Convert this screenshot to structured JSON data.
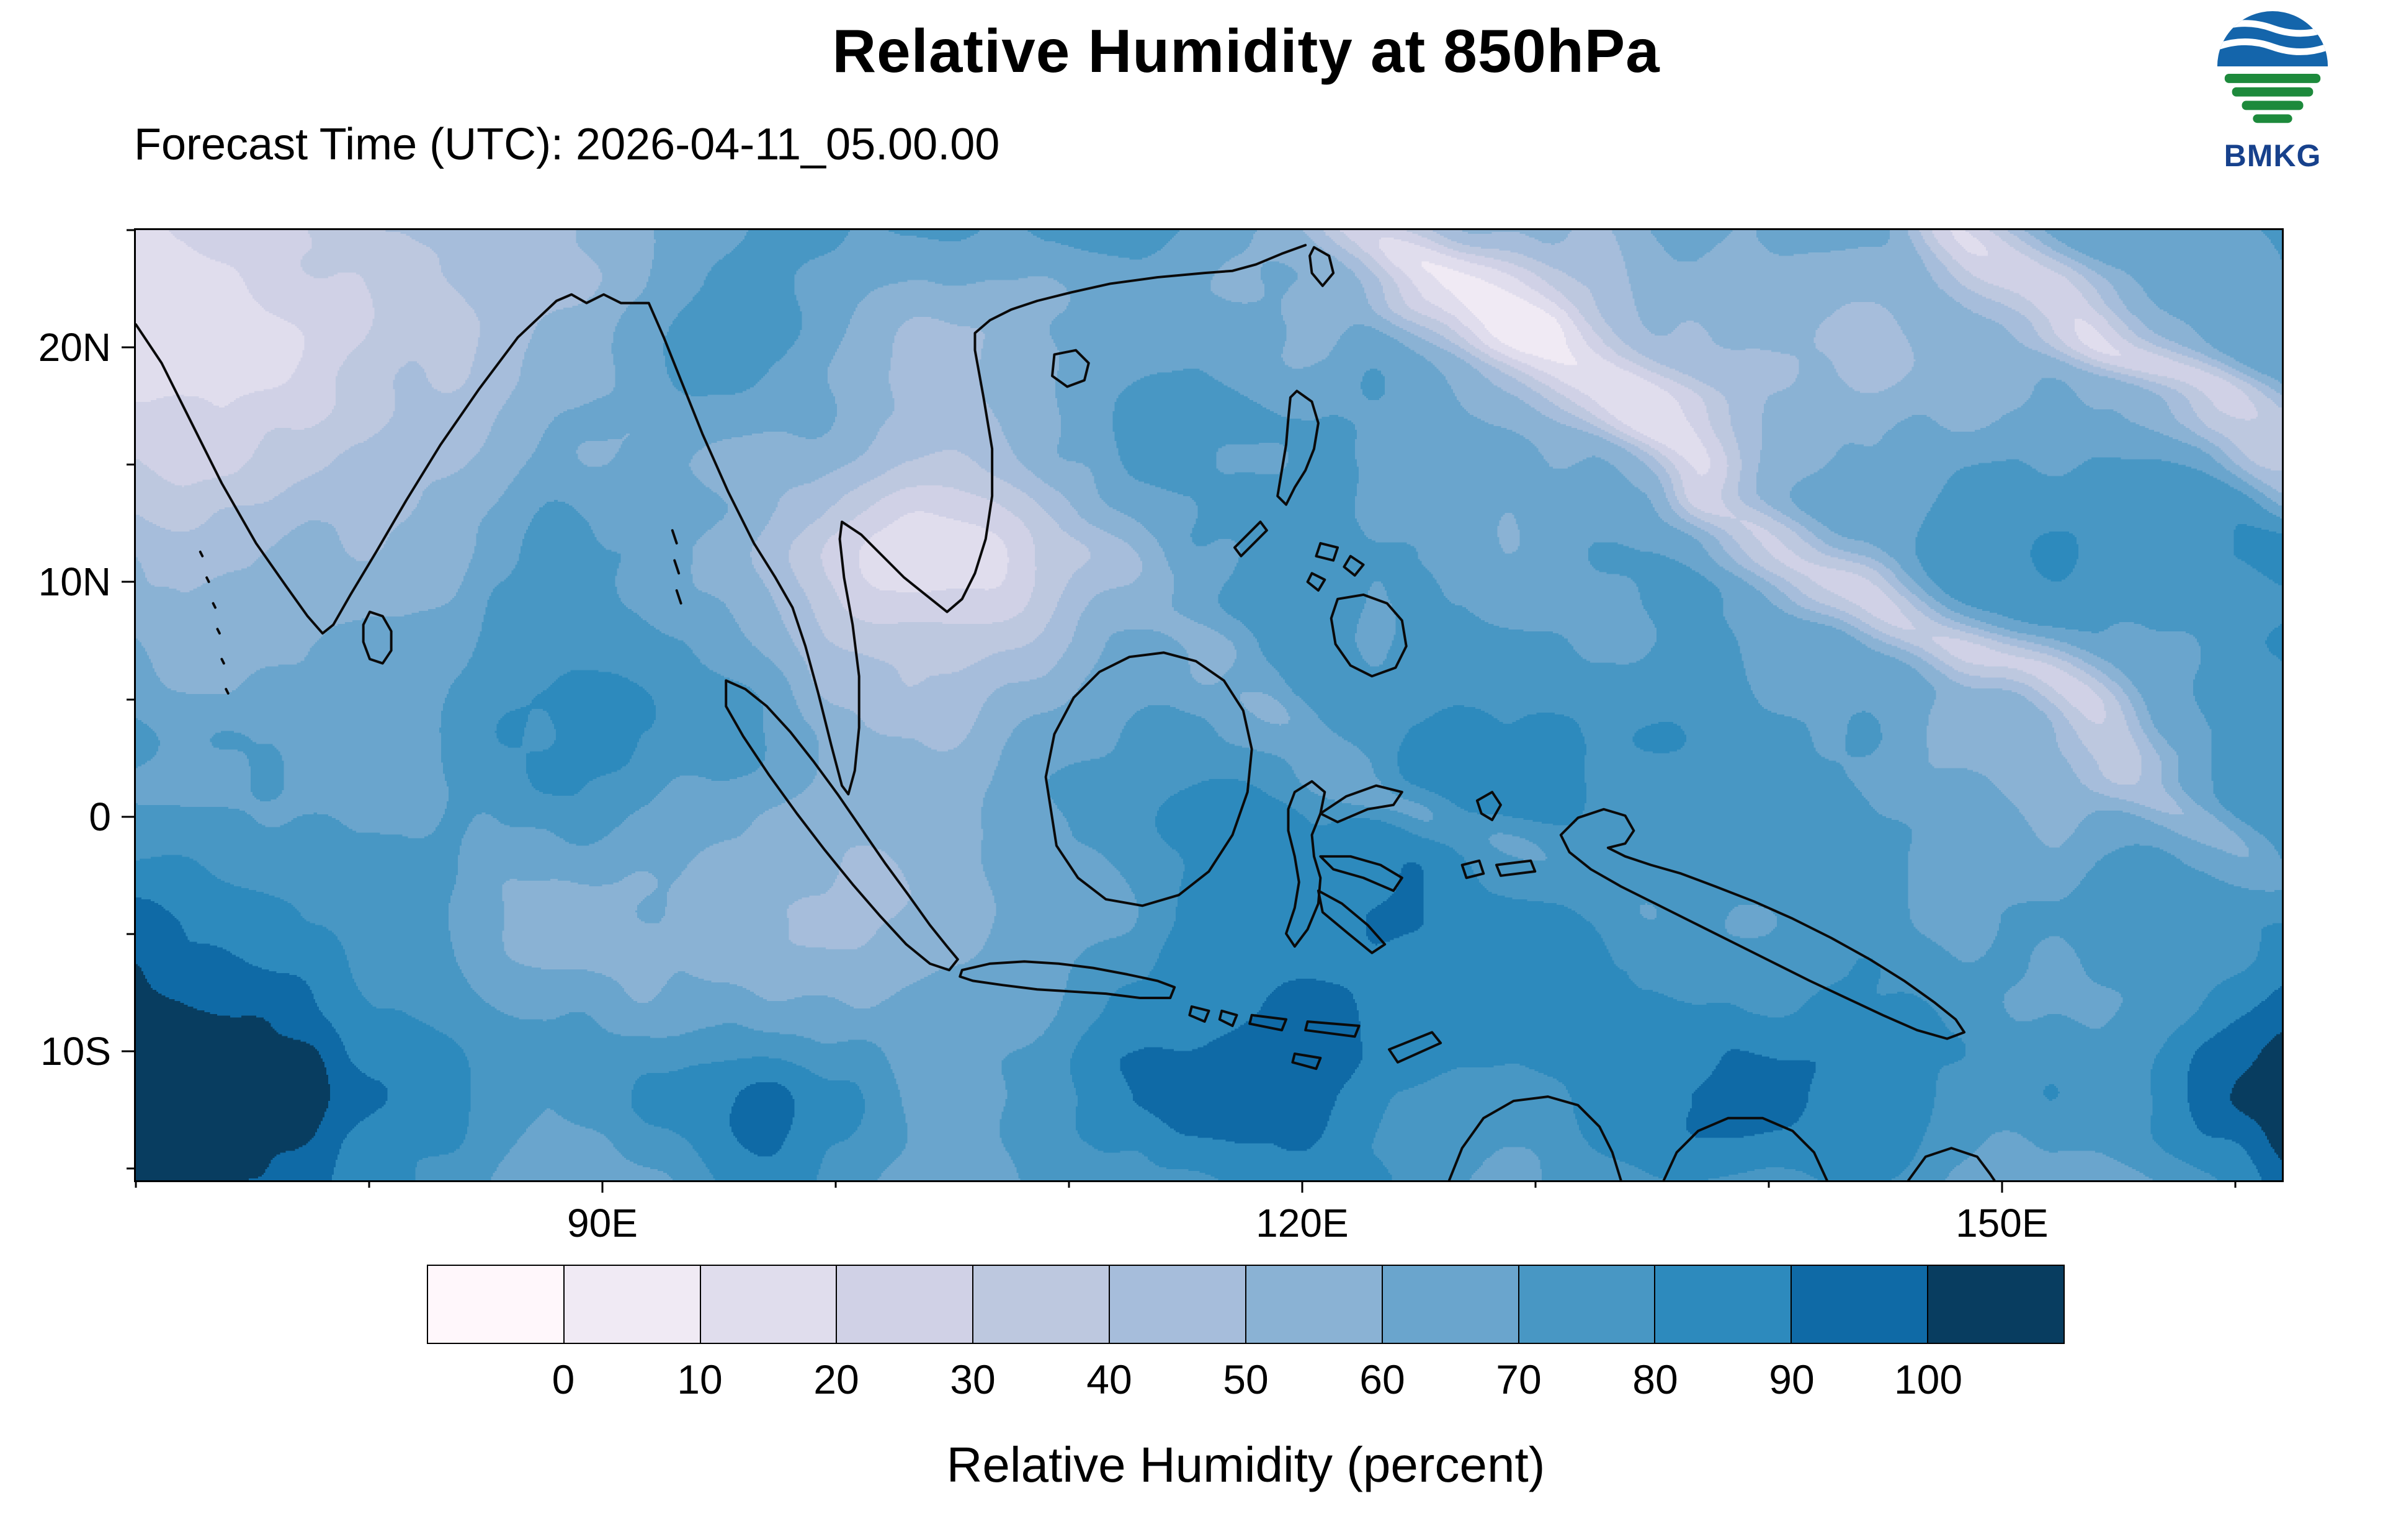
{
  "header": {
    "title": "Relative Humidity at 850hPa",
    "subtitle": "Forecast Time (UTC): 2026-04-11_05.00.00",
    "logo_text": "BMKG"
  },
  "map": {
    "lon_min": 70,
    "lon_max": 162,
    "lat_min": -15.5,
    "lat_max": 25,
    "y_ticks": [
      {
        "label": "20N",
        "lat": 20
      },
      {
        "label": "10N",
        "lat": 10
      },
      {
        "label": "0",
        "lat": 0
      },
      {
        "label": "10S",
        "lat": -10
      }
    ],
    "x_ticks": [
      {
        "label": "90E",
        "lon": 90
      },
      {
        "label": "120E",
        "lon": 120
      },
      {
        "label": "150E",
        "lon": 150
      }
    ]
  },
  "colorbar": {
    "tick_labels": [
      "0",
      "10",
      "20",
      "30",
      "40",
      "50",
      "60",
      "70",
      "80",
      "90",
      "100"
    ],
    "colors": [
      "#fff7fb",
      "#f0eaf4",
      "#e0dded",
      "#d0d1e6",
      "#bdc8df",
      "#a6bddb",
      "#8ab2d4",
      "#6aa5cd",
      "#4897c4",
      "#2d8abd",
      "#0f6aa6",
      "#083d60"
    ],
    "caption": "Relative Humidity (percent)"
  },
  "chart_data": {
    "type": "heatmap",
    "title": "Relative Humidity at 850hPa",
    "forecast_time_utc": "2026-04-11_05.00.00",
    "variable": "Relative Humidity",
    "units": "percent",
    "pressure_level": "850hPa",
    "source": "BMKG",
    "x_axis": {
      "tick_labels": [
        "90E",
        "120E",
        "150E"
      ],
      "range_deg_east": [
        70,
        162
      ]
    },
    "y_axis": {
      "tick_labels": [
        "20N",
        "10N",
        "0",
        "10S"
      ],
      "range_deg_north": [
        -15.5,
        25
      ]
    },
    "contour_levels": [
      0,
      10,
      20,
      30,
      40,
      50,
      60,
      70,
      80,
      90,
      100
    ],
    "palette": [
      "#fff7fb",
      "#f0eaf4",
      "#e0dded",
      "#d0d1e6",
      "#bdc8df",
      "#a6bddb",
      "#8ab2d4",
      "#6aa5cd",
      "#4897c4",
      "#2d8abd",
      "#0f6aa6",
      "#083d60"
    ],
    "legend_position": "bottom",
    "grid": false
  }
}
